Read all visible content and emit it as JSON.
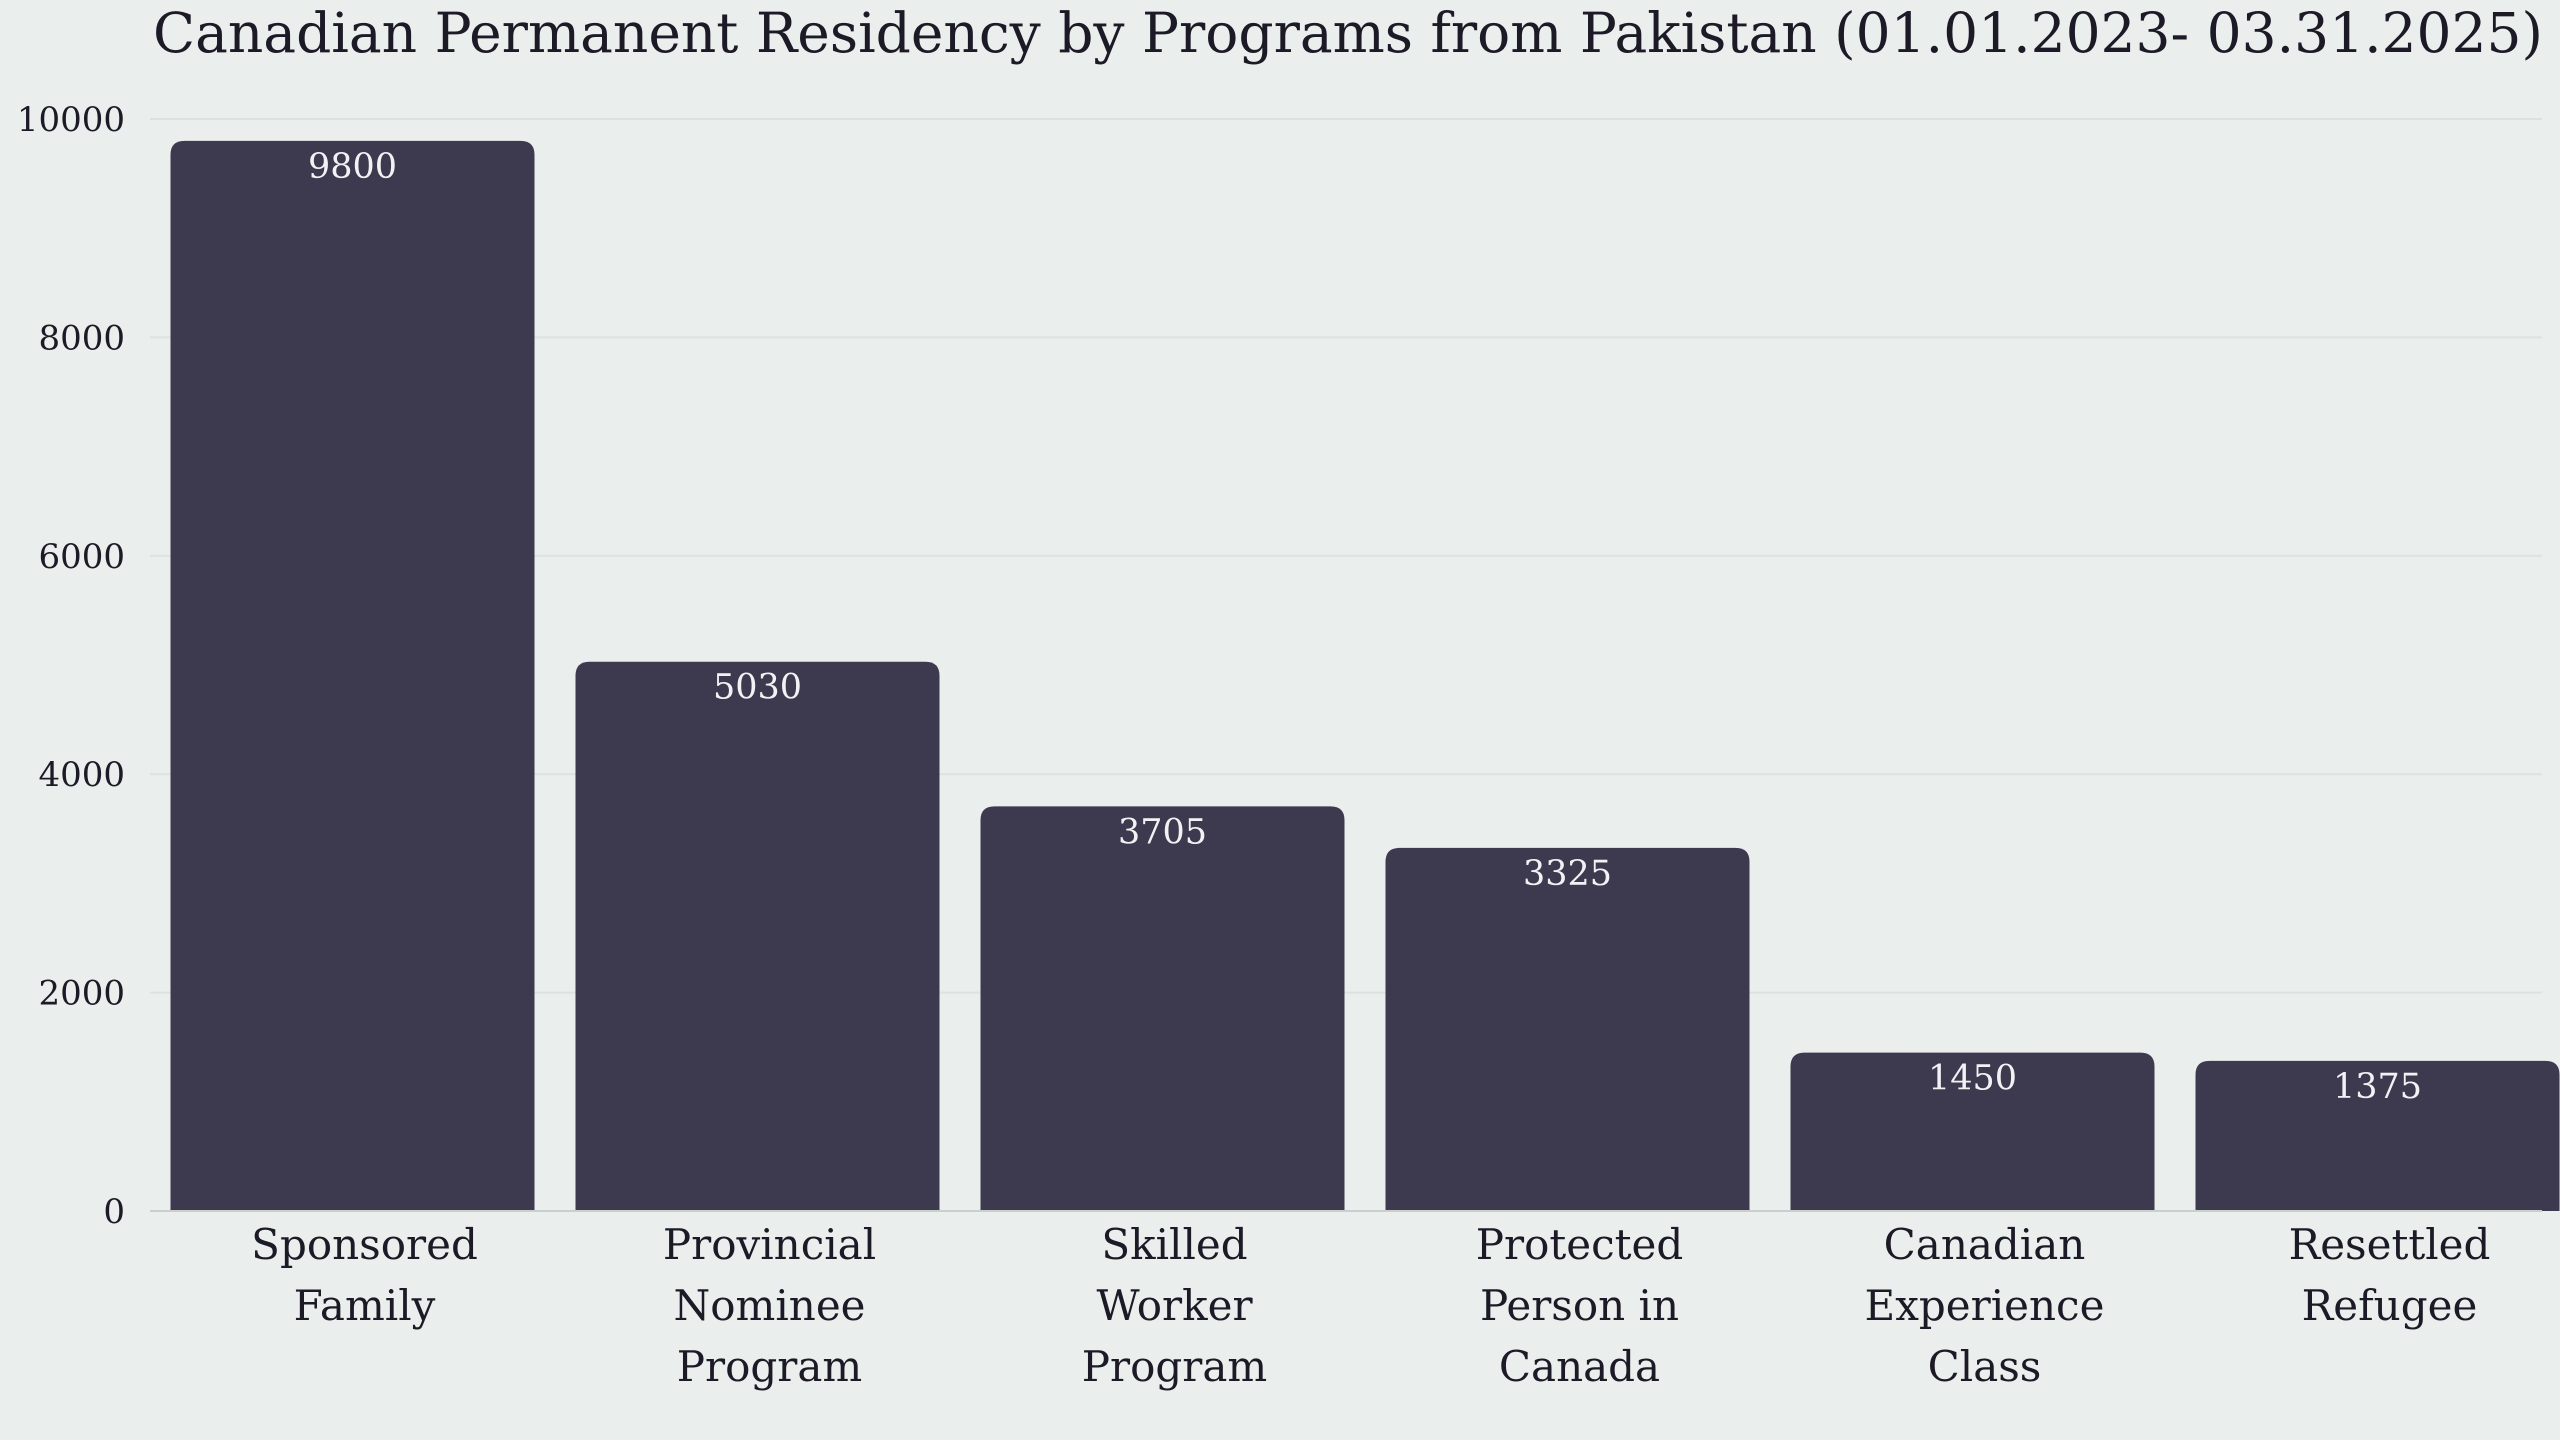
{
  "chart_data": {
    "type": "bar",
    "title": "Canadian Permanent Residency by Programs from Pakistan (01.01.2023- 03.31.2025)",
    "xlabel": "",
    "ylabel": "",
    "categories": [
      [
        "Sponsored",
        "Family"
      ],
      [
        "Provincial",
        "Nominee",
        "Program"
      ],
      [
        "Skilled",
        "Worker",
        "Program"
      ],
      [
        "Protected",
        "Person in",
        "Canada"
      ],
      [
        "Canadian",
        "Experience",
        "Class"
      ],
      [
        "Resettled",
        "Refugee"
      ]
    ],
    "values": [
      9800,
      5030,
      3705,
      3325,
      1450,
      1375
    ],
    "value_labels": [
      "9800",
      "5030",
      "3705",
      "3325",
      "1450",
      "1375"
    ],
    "ylim": [
      0,
      10000
    ],
    "yticks": [
      0,
      2000,
      4000,
      6000,
      8000,
      10000
    ],
    "ytick_labels": [
      "0",
      "2000",
      "4000",
      "6000",
      "8000",
      "10000"
    ],
    "grid": true,
    "legend": "none",
    "bar_color": "#3d394f",
    "value_label_color": "#f2f2f4",
    "background_color": "#eaeeec"
  }
}
